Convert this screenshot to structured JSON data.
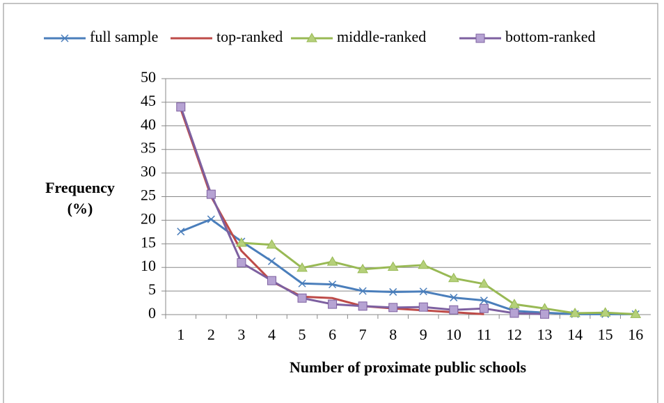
{
  "chart_data": {
    "type": "line",
    "y_label": [
      "Frequency",
      "(%)"
    ],
    "x_label": "Number of proximate public schools",
    "categories": [
      1,
      2,
      3,
      4,
      5,
      6,
      7,
      8,
      9,
      10,
      11,
      12,
      13,
      14,
      15,
      16
    ],
    "series": [
      {
        "name": "full sample",
        "color": "#4a7ebb",
        "marker": "x",
        "values": [
          17.6,
          20.2,
          15.5,
          11.3,
          6.6,
          6.4,
          5.0,
          4.8,
          4.9,
          3.6,
          3.0,
          0.8,
          0.4,
          0.1,
          0.1,
          0.1
        ]
      },
      {
        "name": "top-ranked",
        "color": "#be4b48",
        "marker": "none",
        "values": [
          43.5,
          25,
          13.5,
          7,
          3.8,
          3.5,
          1.8,
          1.3,
          0.9,
          0.5,
          0.1,
          null,
          null,
          null,
          null,
          null
        ]
      },
      {
        "name": "middle-ranked",
        "color": "#98b954",
        "marker": "triangle",
        "values": [
          null,
          null,
          15.2,
          14.8,
          9.9,
          11.2,
          9.6,
          10.1,
          10.5,
          7.7,
          6.5,
          2.2,
          1.3,
          0.3,
          0.4,
          0.1
        ]
      },
      {
        "name": "bottom-ranked",
        "color": "#7d60a0",
        "marker": "square",
        "values": [
          44,
          25.5,
          11,
          7.2,
          3.5,
          2.2,
          1.8,
          1.5,
          1.6,
          1.0,
          1.3,
          0.3,
          0.1,
          null,
          null,
          null
        ]
      }
    ],
    "ylim": [
      0,
      50
    ],
    "yticks": [
      0,
      5,
      10,
      15,
      20,
      25,
      30,
      35,
      40,
      45,
      50
    ],
    "grid": true
  }
}
